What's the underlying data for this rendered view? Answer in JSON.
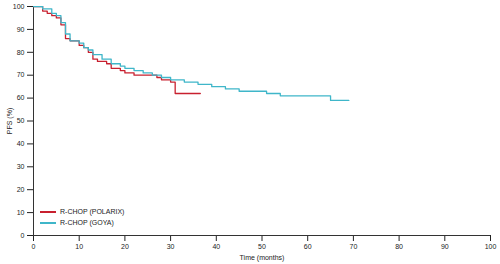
{
  "chart_data": {
    "type": "line",
    "x_label": "Time (months)",
    "y_label": "PFS (%)",
    "xlim": [
      0,
      100
    ],
    "xticks": [
      0,
      10,
      20,
      30,
      40,
      50,
      60,
      70,
      80,
      90,
      100
    ],
    "ylim": [
      0,
      100
    ],
    "yticks": [
      0,
      10,
      20,
      30,
      40,
      50,
      60,
      70,
      80,
      90,
      100
    ],
    "grid": false,
    "legend": "lower left",
    "line_style": "step",
    "series": [
      {
        "name": "R-CHOP (POLARIX)",
        "color": "#c8202f",
        "x": [
          0,
          2,
          3,
          4,
          5,
          6,
          7,
          8,
          10,
          11,
          12,
          13,
          14,
          16,
          17,
          19,
          20,
          22,
          25,
          27,
          28,
          29,
          30,
          31,
          36.5
        ],
        "values": [
          100,
          98,
          97,
          96,
          95,
          92,
          86,
          85,
          83,
          82,
          80,
          77,
          76,
          75,
          73,
          72,
          71,
          70,
          70,
          69,
          68,
          68,
          67,
          62,
          62
        ]
      },
      {
        "name": "R-CHOP (GOYA)",
        "color": "#3fb6c9",
        "x": [
          0,
          2,
          4,
          5,
          6,
          7,
          8,
          10,
          11,
          12,
          13,
          15,
          17,
          19,
          20,
          22,
          24,
          26,
          28,
          30,
          33,
          36,
          39,
          42,
          45,
          48,
          51,
          54,
          60,
          64,
          65,
          69
        ],
        "values": [
          100,
          99,
          97,
          96,
          93,
          88,
          85,
          84,
          82,
          81,
          79,
          77,
          75,
          74,
          73,
          72,
          71,
          70,
          69,
          68,
          67,
          66,
          65,
          64,
          63,
          63,
          62,
          61,
          61,
          61,
          59,
          59
        ]
      }
    ]
  }
}
